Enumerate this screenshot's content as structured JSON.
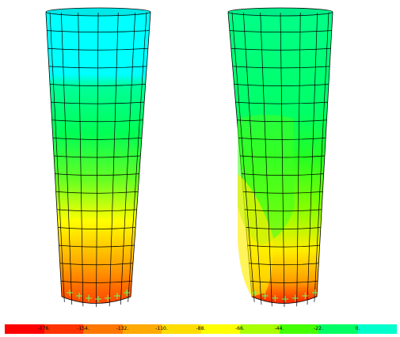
{
  "figure": {
    "models": [
      {
        "name": "left-model",
        "bands": [
          "#00ffff",
          "#00ff99",
          "#00ff44",
          "#55ff22",
          "#ffff00",
          "#ffaa00",
          "#ff5500"
        ]
      },
      {
        "name": "right-model",
        "bands": [
          "#00ff88",
          "#00ff44",
          "#22ff22",
          "#88ff00",
          "#ffff00",
          "#ff9900",
          "#ff3300"
        ]
      }
    ],
    "mesh_color": "#000000",
    "support_marker_color": "#66ff66"
  },
  "legend": {
    "labels": [
      "-176.",
      "-154.",
      "-132.",
      "-110.",
      "-88.",
      "-66.",
      "-44.",
      "-22.",
      "0."
    ],
    "colors": [
      "#ff0000",
      "#ff3300",
      "#ff7700",
      "#ffaa00",
      "#ffdd00",
      "#ffff00",
      "#aaff00",
      "#44ff00",
      "#00ff66",
      "#00ffcc"
    ]
  }
}
